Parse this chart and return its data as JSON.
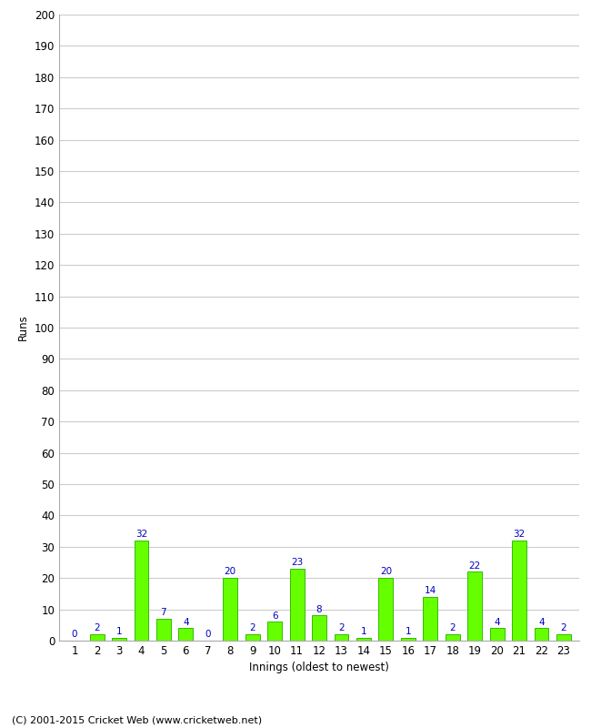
{
  "title": "",
  "xlabel": "Innings (oldest to newest)",
  "ylabel": "Runs",
  "innings": [
    1,
    2,
    3,
    4,
    5,
    6,
    7,
    8,
    9,
    10,
    11,
    12,
    13,
    14,
    15,
    16,
    17,
    18,
    19,
    20,
    21,
    22,
    23
  ],
  "values": [
    0,
    2,
    1,
    32,
    7,
    4,
    0,
    20,
    2,
    6,
    23,
    8,
    2,
    1,
    20,
    1,
    14,
    2,
    22,
    4,
    32,
    4,
    2
  ],
  "bar_color": "#66ff00",
  "bar_edge_color": "#33bb00",
  "label_color": "#0000bb",
  "ylim": [
    0,
    200
  ],
  "ytick_step": 10,
  "grid_color": "#cccccc",
  "bg_color": "#ffffff",
  "footer": "(C) 2001-2015 Cricket Web (www.cricketweb.net)",
  "label_fontsize": 7.5,
  "tick_fontsize": 8.5,
  "xlabel_fontsize": 8.5,
  "ylabel_fontsize": 8.5,
  "footer_fontsize": 8.0
}
